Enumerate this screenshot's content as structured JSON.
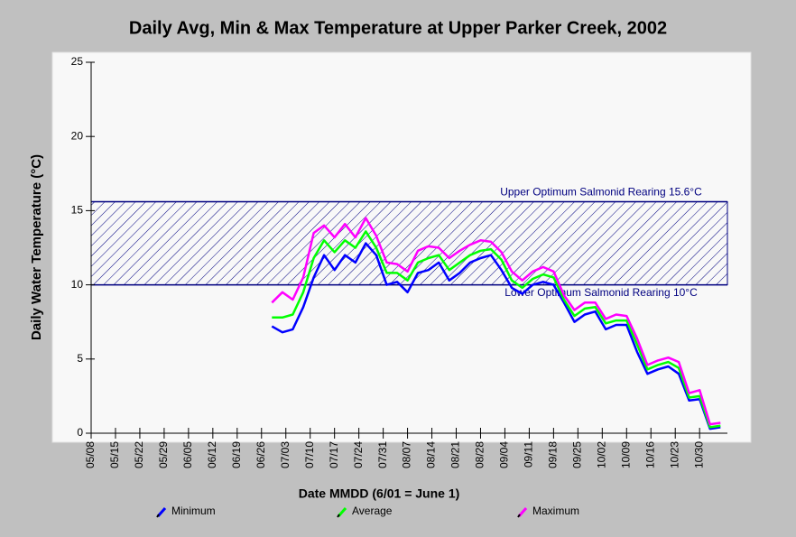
{
  "chart_data": {
    "type": "line",
    "title": "Daily Avg, Min & Max Temperature at Upper Parker Creek, 2002",
    "x_label": "Date MMDD (6/01 = June 1)",
    "y_label": "Daily Water Temperature (°C)",
    "x": [
      "06/29",
      "07/02",
      "07/05",
      "07/08",
      "07/11",
      "07/14",
      "07/17",
      "07/20",
      "07/23",
      "07/26",
      "07/29",
      "08/01",
      "08/04",
      "08/07",
      "08/10",
      "08/13",
      "08/16",
      "08/19",
      "08/22",
      "08/25",
      "08/28",
      "08/31",
      "09/03",
      "09/06",
      "09/09",
      "09/12",
      "09/15",
      "09/18",
      "09/21",
      "09/24",
      "09/27",
      "09/30",
      "10/03",
      "10/06",
      "10/09",
      "10/12",
      "10/15",
      "10/18",
      "10/21",
      "10/24",
      "10/27",
      "10/30",
      "11/02",
      "11/05"
    ],
    "series": [
      {
        "name": "Minimum",
        "color": "#0000ff",
        "values": [
          7.2,
          6.8,
          7.0,
          8.5,
          10.5,
          12.0,
          11.0,
          12.0,
          11.5,
          12.8,
          12.0,
          10.0,
          10.2,
          9.5,
          10.8,
          11.0,
          11.5,
          10.3,
          10.8,
          11.5,
          11.8,
          12.0,
          11.0,
          9.8,
          9.4,
          10.0,
          10.2,
          10.0,
          8.8,
          7.5,
          8.0,
          8.2,
          7.0,
          7.3,
          7.3,
          5.5,
          4.0,
          4.3,
          4.5,
          4.0,
          2.2,
          2.3,
          0.3,
          0.4
        ]
      },
      {
        "name": "Average",
        "color": "#00ff00",
        "values": [
          7.8,
          7.8,
          8.0,
          9.5,
          11.8,
          13.0,
          12.2,
          13.0,
          12.5,
          13.6,
          12.5,
          10.8,
          10.8,
          10.3,
          11.5,
          11.8,
          12.0,
          11.0,
          11.5,
          12.0,
          12.3,
          12.4,
          11.7,
          10.3,
          9.8,
          10.4,
          10.7,
          10.5,
          9.0,
          7.9,
          8.4,
          8.5,
          7.4,
          7.6,
          7.6,
          6.0,
          4.3,
          4.6,
          4.8,
          4.4,
          2.4,
          2.5,
          0.4,
          0.5
        ]
      },
      {
        "name": "Maximum",
        "color": "#ff00ff",
        "values": [
          8.8,
          9.5,
          9.0,
          10.5,
          13.5,
          14.0,
          13.2,
          14.1,
          13.2,
          14.5,
          13.3,
          11.5,
          11.4,
          10.9,
          12.3,
          12.6,
          12.5,
          11.8,
          12.3,
          12.7,
          13.0,
          12.9,
          12.2,
          10.9,
          10.3,
          10.9,
          11.2,
          10.9,
          9.3,
          8.3,
          8.8,
          8.8,
          7.7,
          8.0,
          7.9,
          6.4,
          4.6,
          4.9,
          5.1,
          4.8,
          2.7,
          2.9,
          0.6,
          0.7
        ]
      }
    ],
    "annotations": [
      {
        "text": "Upper Optimum Salmonid Rearing 15.6°C",
        "value": 15.6
      },
      {
        "text": "Lower Optimum Salmonid Rearing 10°C",
        "value": 10
      }
    ],
    "band_color": "#000080",
    "xlim": [
      "05/08",
      "11/07"
    ],
    "xticks": [
      "05/08",
      "05/15",
      "05/22",
      "05/29",
      "06/05",
      "06/12",
      "06/19",
      "06/26",
      "07/03",
      "07/10",
      "07/17",
      "07/24",
      "07/31",
      "08/07",
      "08/14",
      "08/21",
      "08/28",
      "09/04",
      "09/11",
      "09/18",
      "09/25",
      "10/02",
      "10/09",
      "10/16",
      "10/23",
      "10/30"
    ],
    "ylim": [
      0,
      25
    ],
    "yticks": [
      0,
      5,
      10,
      15,
      20,
      25
    ],
    "legend": "bottom"
  }
}
